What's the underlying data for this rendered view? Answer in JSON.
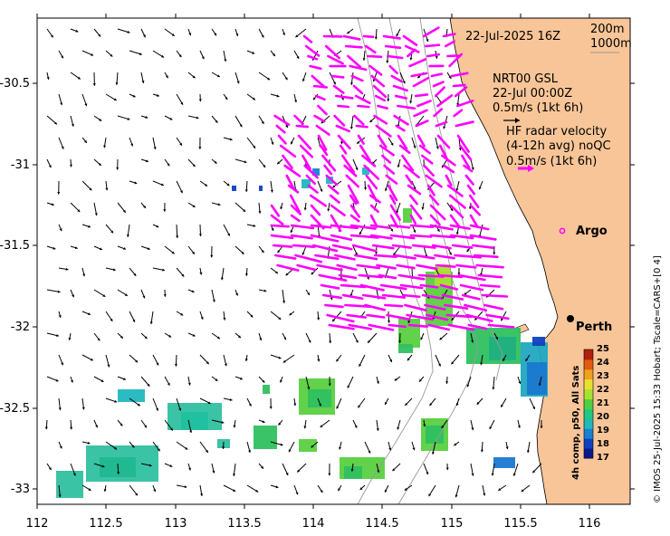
{
  "map": {
    "date_label": "22-Jul-2025 16Z",
    "isobath_labels": [
      "200m",
      "1000m"
    ],
    "model_label": [
      "NRT00 GSL",
      "22-Jul 00:00Z",
      "0.5m/s (1kt 6h)"
    ],
    "radar_label": [
      "HF radar velocity",
      "(4-12h avg) noQC",
      "0.5m/s (1kt 6h)"
    ],
    "argo_label": "Argo",
    "city_label": "Perth",
    "side_caption": "© IMOS 25-Jul-2025 15:33 Hobart; Tscale=CARS+[0 4]",
    "x_ticks": [
      "112",
      "112.5",
      "113",
      "113.5",
      "114",
      "114.5",
      "115",
      "115.5",
      "116"
    ],
    "y_ticks": [
      "-30.5",
      "-31",
      "-31.5",
      "-32",
      "-32.5",
      "-33"
    ],
    "colorbar_title": "4h comp, p50, All Sats",
    "colorbar_ticks": [
      "17",
      "18",
      "19",
      "20",
      "21",
      "22",
      "23",
      "24",
      "25"
    ],
    "colors": {
      "land": "#f7c598",
      "radar_arrow": "#ff00ff",
      "model_arrow": "#000000",
      "isobath": "#999999"
    }
  },
  "chart_data": {
    "type": "heatmap",
    "title": "",
    "xlabel": "",
    "ylabel": "",
    "xlim": [
      112,
      116.3
    ],
    "ylim": [
      -33.1,
      -30.1
    ],
    "colorbar": {
      "label": "4h comp, p50, All Sats",
      "range": [
        17,
        25
      ]
    },
    "markers": [
      {
        "name": "Argo",
        "lon": 115.78,
        "lat": -31.53
      },
      {
        "name": "Perth",
        "lon": 115.86,
        "lat": -31.95
      }
    ]
  }
}
